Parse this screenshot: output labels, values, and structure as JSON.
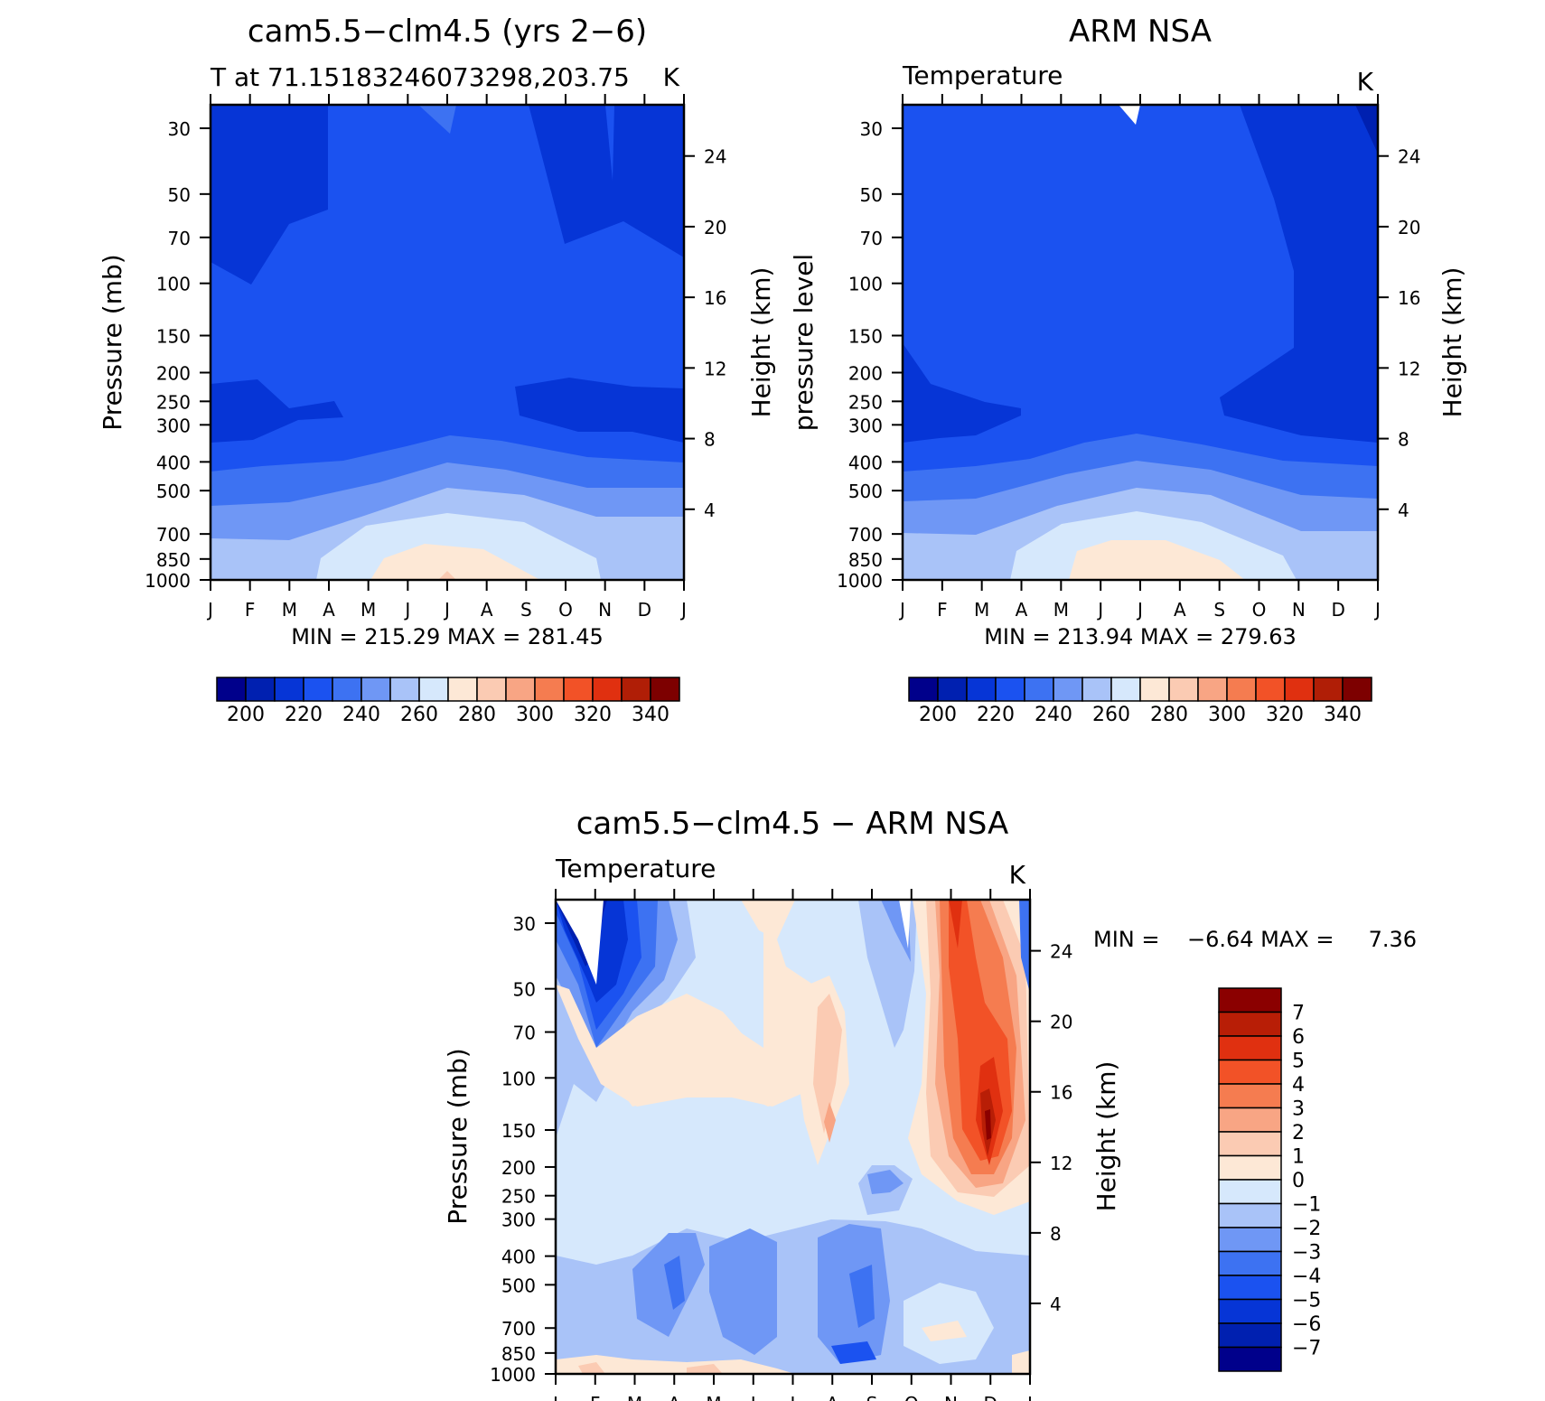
{
  "chart_data": [
    {
      "type": "heatmap",
      "title": "cam5.5−clm4.5 (yrs 2−6)",
      "subtitle_left": "T at 71.15183246073298,203.75",
      "subtitle_right": "K",
      "ylabel": "Pressure (mb)",
      "y2label": "Height (km)",
      "x_ticks": [
        "J",
        "F",
        "M",
        "A",
        "M",
        "J",
        "J",
        "A",
        "S",
        "O",
        "N",
        "D",
        "J"
      ],
      "pressure_ticks": [
        "30",
        "50",
        "70",
        "100",
        "150",
        "200",
        "250",
        "300",
        "400",
        "500",
        "700",
        "850",
        "1000"
      ],
      "height_ticks": [
        "24",
        "20",
        "16",
        "12",
        "8",
        "4"
      ],
      "stats": "MIN = 215.29 MAX = 281.45",
      "colorbar_labels": [
        "200",
        "220",
        "240",
        "260",
        "280",
        "300",
        "320",
        "340"
      ]
    },
    {
      "type": "heatmap",
      "title": "ARM NSA",
      "subtitle_left": "Temperature",
      "subtitle_right": "K",
      "ylabel": "pressure level",
      "y2label": "Height (km)",
      "x_ticks": [
        "J",
        "F",
        "M",
        "A",
        "M",
        "J",
        "J",
        "A",
        "S",
        "O",
        "N",
        "D",
        "J"
      ],
      "pressure_ticks": [
        "30",
        "50",
        "70",
        "100",
        "150",
        "200",
        "250",
        "300",
        "400",
        "500",
        "700",
        "850",
        "1000"
      ],
      "height_ticks": [
        "24",
        "20",
        "16",
        "12",
        "8",
        "4"
      ],
      "stats": "MIN = 213.94 MAX = 279.63",
      "colorbar_labels": [
        "200",
        "220",
        "240",
        "260",
        "280",
        "300",
        "320",
        "340"
      ]
    },
    {
      "type": "heatmap",
      "title": "cam5.5−clm4.5 − ARM NSA",
      "subtitle_left": "Temperature",
      "subtitle_right": "K",
      "ylabel": "Pressure (mb)",
      "y2label": "Height (km)",
      "x_ticks": [
        "J",
        "F",
        "M",
        "A",
        "M",
        "J",
        "J",
        "A",
        "S",
        "O",
        "N",
        "D",
        "J"
      ],
      "pressure_ticks": [
        "30",
        "50",
        "70",
        "100",
        "150",
        "200",
        "250",
        "300",
        "400",
        "500",
        "700",
        "850",
        "1000"
      ],
      "height_ticks": [
        "24",
        "20",
        "16",
        "12",
        "8",
        "4"
      ],
      "stats": "MIN =    −6.64 MAX =     7.36",
      "colorbar_labels": [
        "7",
        "6",
        "5",
        "4",
        "3",
        "2",
        "1",
        "0",
        "−1",
        "−2",
        "−3",
        "−4",
        "−5",
        "−6",
        "−7"
      ]
    }
  ],
  "palette": {
    "abs": [
      "#00008b",
      "#0020b0",
      "#0635d6",
      "#1b52f0",
      "#3d72f2",
      "#6f97f5",
      "#a9c3f8",
      "#d6e8fc",
      "#fde8d6",
      "#fbcbb3",
      "#f8a584",
      "#f57c50",
      "#f25227",
      "#e03010",
      "#b01e06",
      "#7d0000"
    ],
    "diff": [
      "#8b0000",
      "#b81e06",
      "#e03010",
      "#f25227",
      "#f57c50",
      "#f8a584",
      "#fbcbb3",
      "#fde8d6",
      "#d6e8fc",
      "#a9c3f8",
      "#6f97f5",
      "#3d72f2",
      "#1b52f0",
      "#0635d6",
      "#0020b0",
      "#00008b"
    ]
  }
}
